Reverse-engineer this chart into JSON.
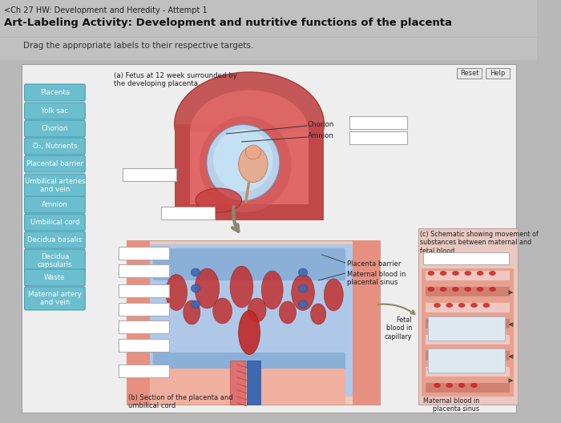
{
  "title_line1": "<Ch 27 HW: Development and Heredity - Attempt 1",
  "title_line2": "Art-Labeling Activity: Development and nutritive functions of the placenta",
  "subtitle": "Drag the appropriate labels to their respective targets.",
  "page_bg": "#b8b8b8",
  "header_bg": "#c8c8c8",
  "panel_bg": "#d8d8d8",
  "inner_panel_bg": "#ebebeb",
  "button_color": "#6bbece",
  "button_text_color": "#ffffff",
  "button_border": "#4a9eb0",
  "labels": [
    "Placenta",
    "Yolk sac",
    "Chorion",
    "O₂, Nutrients",
    "Placental barrier",
    "Umbilical arteries\nand vein",
    "Amnion",
    "Umbilical cord",
    "Decidua basalis",
    "Decidua\ncapsularis",
    "Waste",
    "Maternal artery\nand vein"
  ],
  "annotation_a": "(a) Fetus at 12 week surrounded by\nthe developing placenta",
  "annotation_b": "(b) Section of the placenta and\numbilical cord",
  "annotation_c": "(c) Schematic showing movement of\nsubstances between maternal and\nfetal blood",
  "white_box_color": "#ffffff",
  "white_box_border": "#aaaaaa",
  "uterus_outer": "#c85050",
  "uterus_mid": "#e06060",
  "uterus_inner_wall": "#d04848",
  "sac_blue": "#90c8e0",
  "fetus_pink": "#e8a090",
  "placenta_red": "#c03838",
  "vessel_blue": "#4070b8",
  "vessel_red": "#c83838",
  "skin_pink": "#f0c0b0",
  "right_panel_bg": "#e8c8c0",
  "capillary_pink": "#e89090",
  "rbc_red": "#cc2222"
}
